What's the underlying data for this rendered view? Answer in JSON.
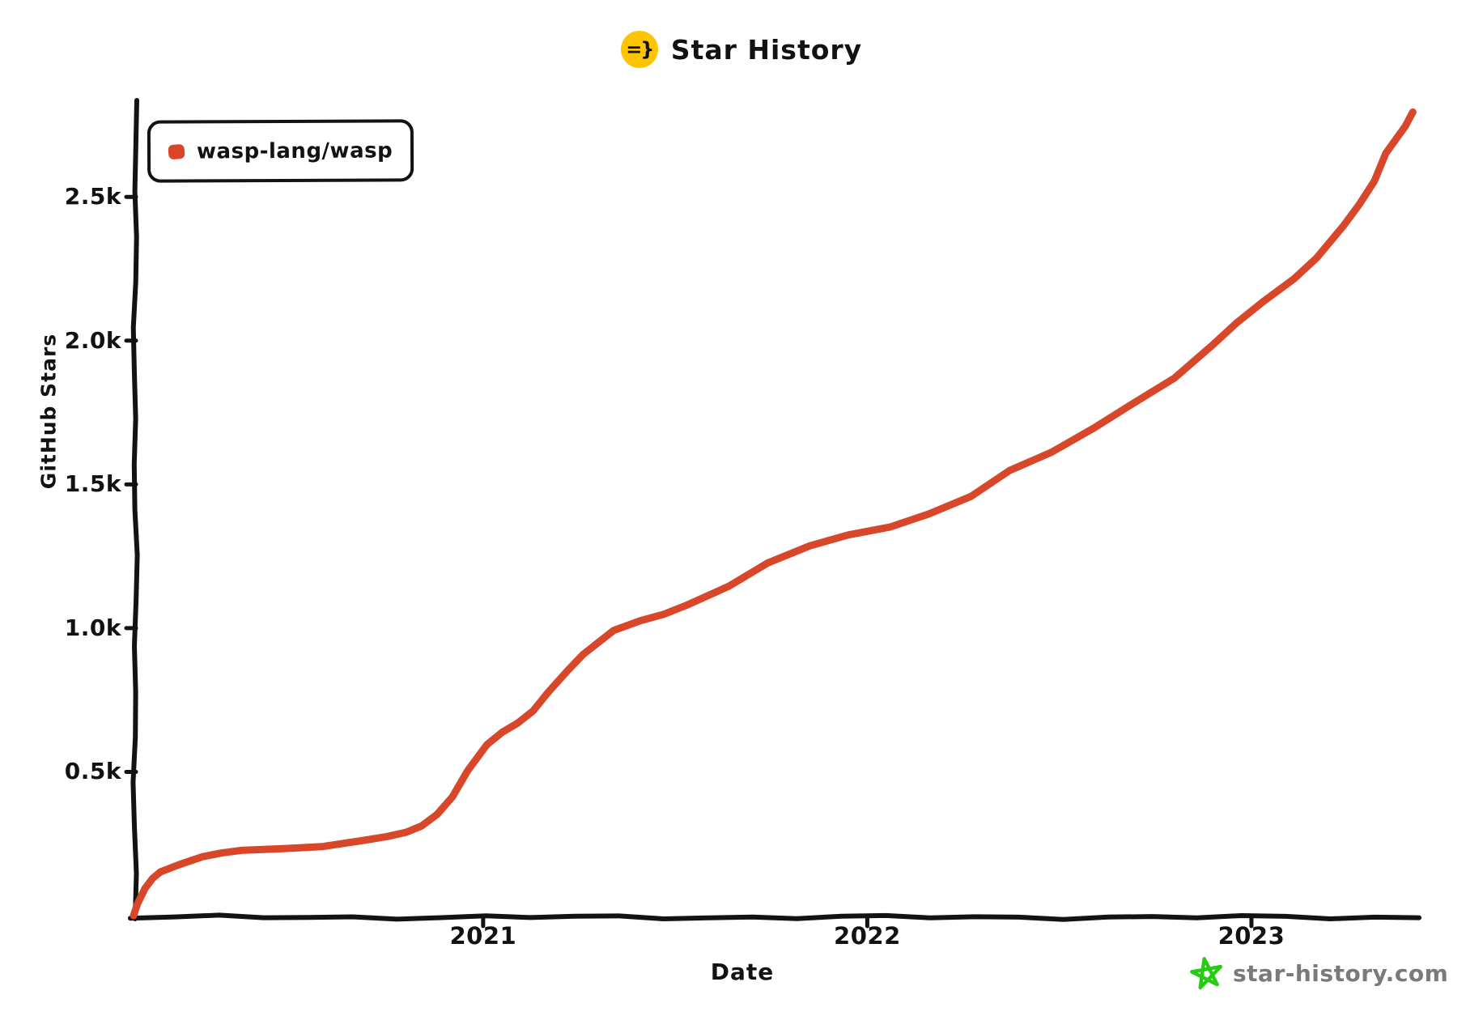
{
  "title": {
    "text": "Star History",
    "icon_text": "=}",
    "icon_color": "#fdc500"
  },
  "legend": {
    "series_label": "wasp-lang/wasp",
    "marker_color": "#d9472b"
  },
  "axes": {
    "x_label": "Date",
    "y_label": "GitHub Stars",
    "axis_color": "#131313"
  },
  "footer": {
    "site_label": "star-history.com",
    "star_icon_color": "#27cc10",
    "text_color": "#7a7a7a"
  },
  "chart_data": {
    "type": "line",
    "title": "Star History",
    "xlabel": "Date",
    "ylabel": "GitHub Stars",
    "grid": false,
    "legend_position": "top-left",
    "xlim": [
      2020.09,
      2023.43
    ],
    "ylim": [
      0,
      2830
    ],
    "x_ticks": [
      {
        "value": 2021,
        "label": "2021"
      },
      {
        "value": 2022,
        "label": "2022"
      },
      {
        "value": 2023,
        "label": "2023"
      }
    ],
    "y_ticks": [
      {
        "value": 500,
        "label": "0.5k"
      },
      {
        "value": 1000,
        "label": "1.0k"
      },
      {
        "value": 1500,
        "label": "1.5k"
      },
      {
        "value": 2000,
        "label": "2.0k"
      },
      {
        "value": 2500,
        "label": "2.5k"
      }
    ],
    "series": [
      {
        "name": "wasp-lang/wasp",
        "color": "#d9472b",
        "points": [
          [
            2020.09,
            0
          ],
          [
            2020.1,
            40
          ],
          [
            2020.12,
            95
          ],
          [
            2020.14,
            130
          ],
          [
            2020.16,
            152
          ],
          [
            2020.21,
            178
          ],
          [
            2020.27,
            205
          ],
          [
            2020.32,
            218
          ],
          [
            2020.37,
            227
          ],
          [
            2020.48,
            233
          ],
          [
            2020.58,
            240
          ],
          [
            2020.69,
            262
          ],
          [
            2020.75,
            275
          ],
          [
            2020.8,
            290
          ],
          [
            2020.84,
            312
          ],
          [
            2020.88,
            352
          ],
          [
            2020.92,
            413
          ],
          [
            2020.96,
            505
          ],
          [
            2021.01,
            595
          ],
          [
            2021.05,
            638
          ],
          [
            2021.09,
            670
          ],
          [
            2021.13,
            712
          ],
          [
            2021.17,
            778
          ],
          [
            2021.22,
            852
          ],
          [
            2021.26,
            908
          ],
          [
            2021.3,
            950
          ],
          [
            2021.34,
            992
          ],
          [
            2021.41,
            1026
          ],
          [
            2021.47,
            1048
          ],
          [
            2021.53,
            1080
          ],
          [
            2021.64,
            1146
          ],
          [
            2021.74,
            1226
          ],
          [
            2021.85,
            1286
          ],
          [
            2021.95,
            1324
          ],
          [
            2022.06,
            1352
          ],
          [
            2022.16,
            1397
          ],
          [
            2022.27,
            1458
          ],
          [
            2022.37,
            1548
          ],
          [
            2022.48,
            1612
          ],
          [
            2022.59,
            1696
          ],
          [
            2022.69,
            1780
          ],
          [
            2022.8,
            1870
          ],
          [
            2022.9,
            1986
          ],
          [
            2022.96,
            2060
          ],
          [
            2023.03,
            2135
          ],
          [
            2023.11,
            2214
          ],
          [
            2023.17,
            2288
          ],
          [
            2023.24,
            2400
          ],
          [
            2023.28,
            2472
          ],
          [
            2023.32,
            2555
          ],
          [
            2023.35,
            2652
          ],
          [
            2023.4,
            2745
          ],
          [
            2023.42,
            2795
          ]
        ]
      }
    ]
  }
}
